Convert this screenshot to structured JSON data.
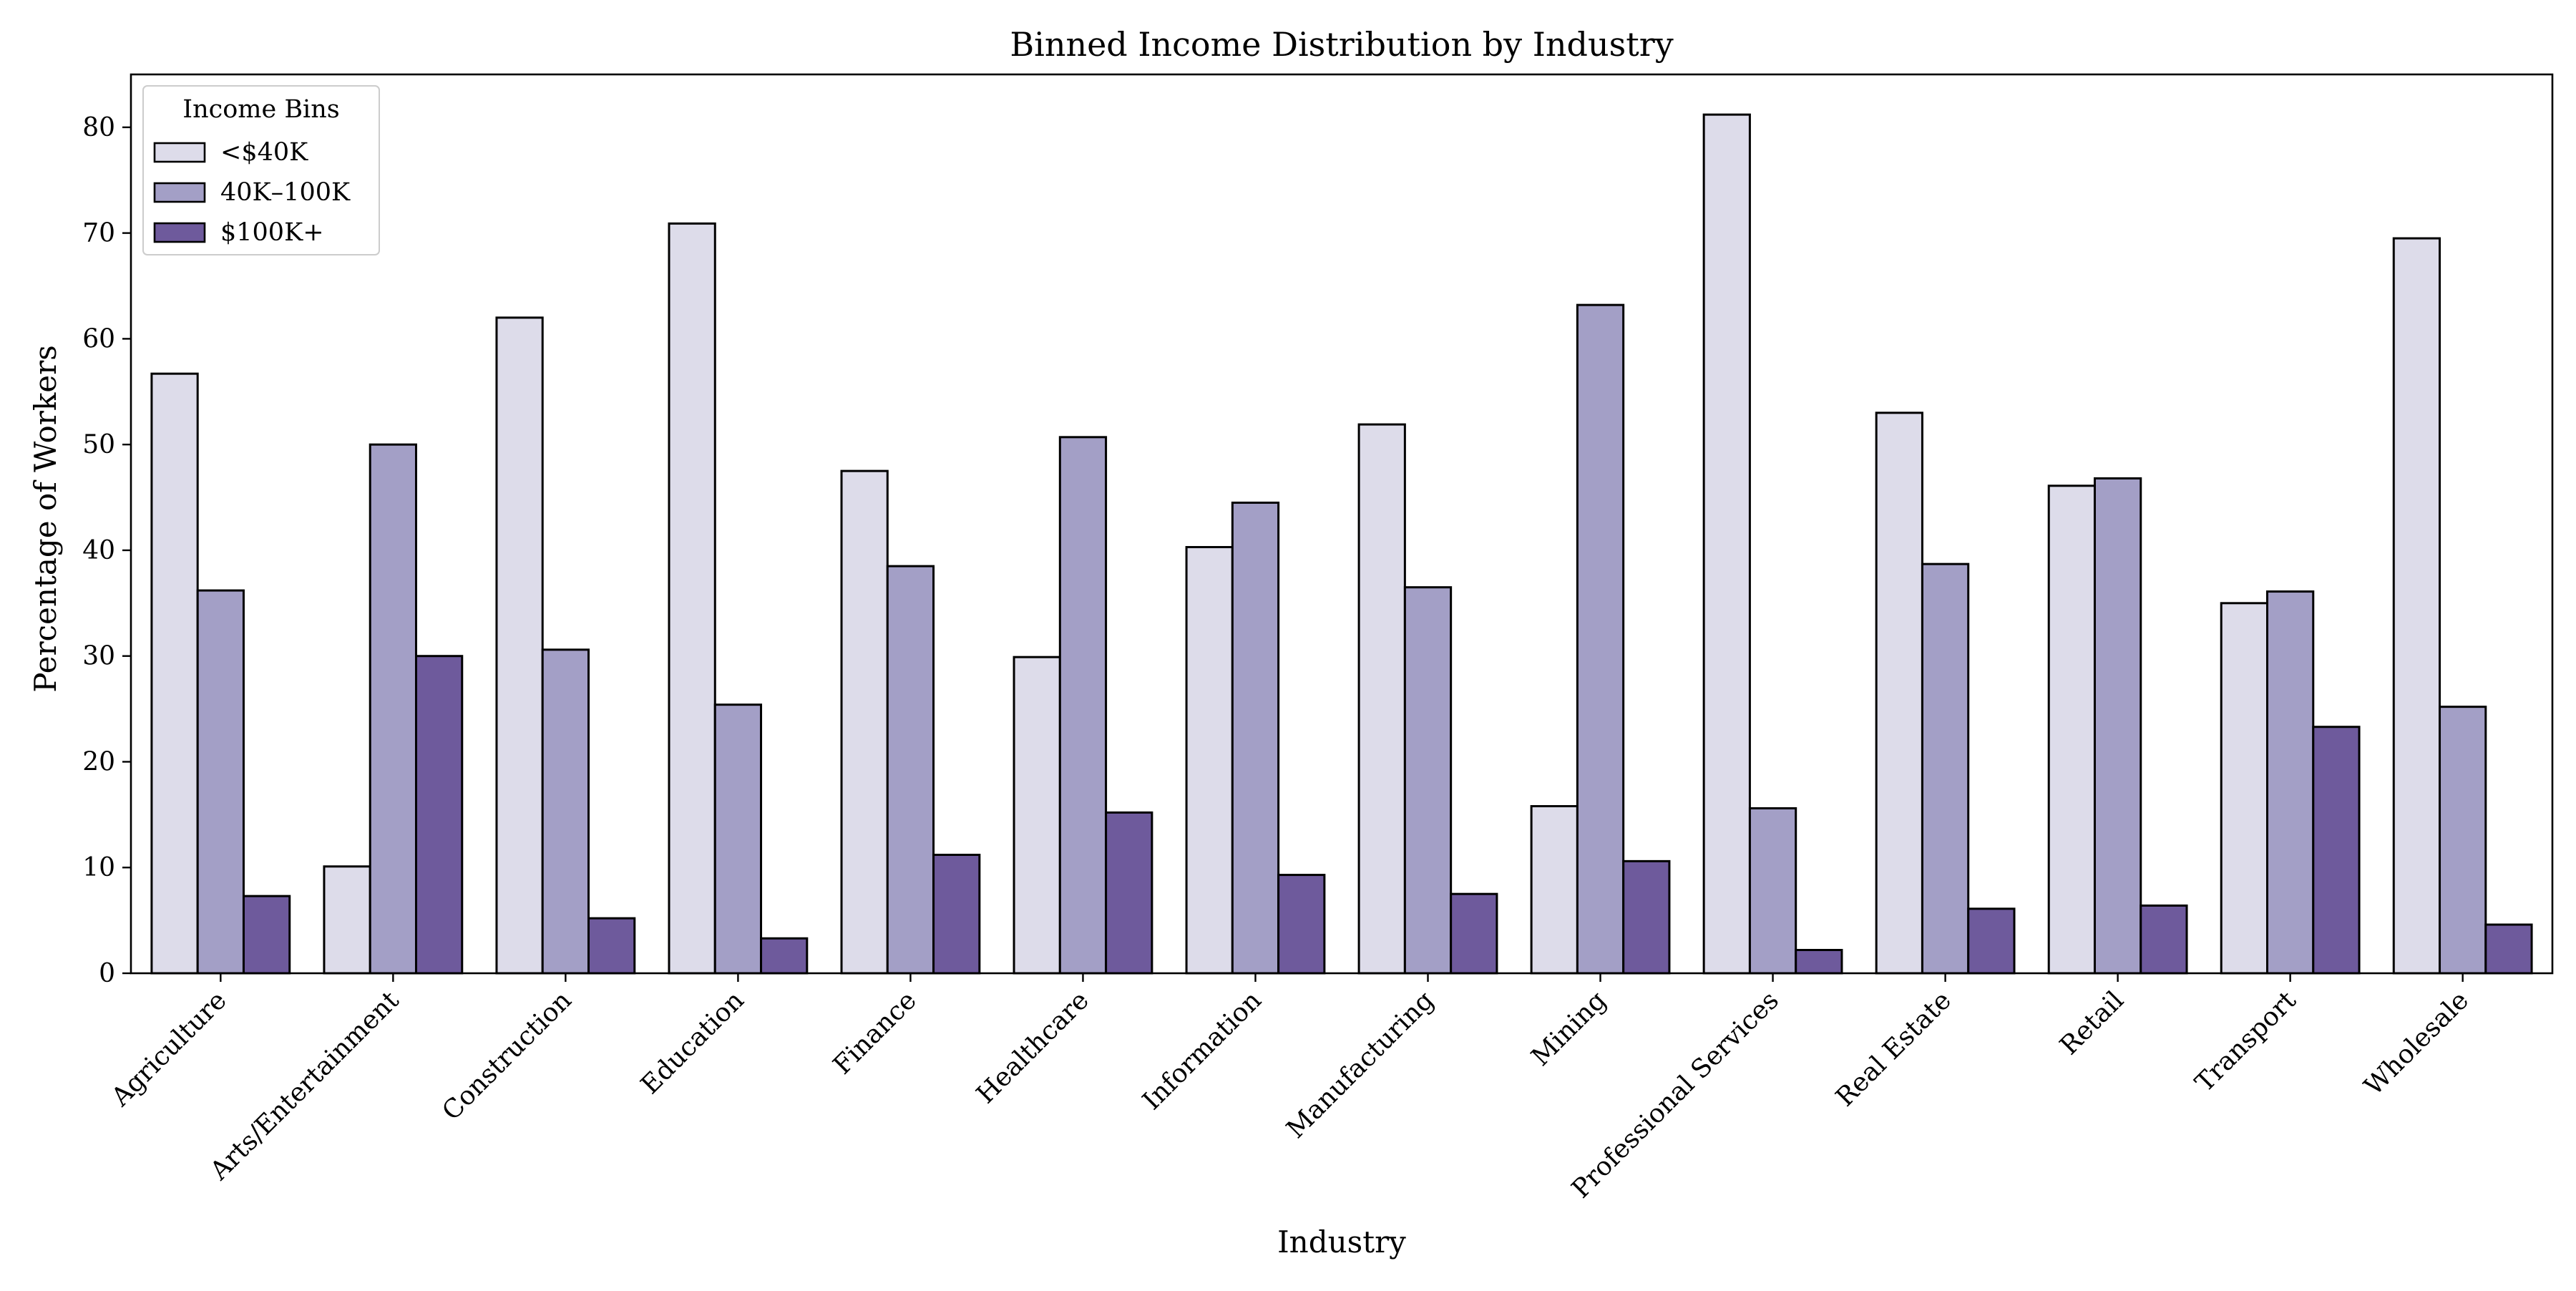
{
  "chart_data": {
    "type": "bar",
    "title": "Binned Income Distribution by Industry",
    "xlabel": "Industry",
    "ylabel": "Percentage of Workers",
    "ylim": [
      0,
      85
    ],
    "yticks": [
      0,
      10,
      20,
      30,
      40,
      50,
      60,
      70,
      80
    ],
    "grid": false,
    "legend": {
      "title": "Income Bins",
      "placement": "top-left"
    },
    "categories": [
      "Agriculture",
      "Arts/Entertainment",
      "Construction",
      "Education",
      "Finance",
      "Healthcare",
      "Information",
      "Manufacturing",
      "Mining",
      "Professional Services",
      "Real Estate",
      "Retail",
      "Transport",
      "Wholesale"
    ],
    "series": [
      {
        "name": "<$40K",
        "color": "#dddcea",
        "values": [
          56.7,
          10.1,
          62.0,
          70.9,
          47.5,
          29.9,
          40.3,
          51.9,
          15.8,
          81.2,
          53.0,
          46.1,
          35.0,
          69.5
        ]
      },
      {
        "name": "40K–100K",
        "color": "#a39fc6",
        "values": [
          36.2,
          50.0,
          30.6,
          25.4,
          38.5,
          50.7,
          44.5,
          36.5,
          63.2,
          15.6,
          38.7,
          46.8,
          36.1,
          25.2
        ]
      },
      {
        "name": "$100K+",
        "color": "#6e5a9c",
        "values": [
          7.3,
          30.0,
          5.2,
          3.3,
          11.2,
          15.2,
          9.3,
          7.5,
          10.6,
          2.2,
          6.1,
          6.4,
          23.3,
          4.6
        ]
      }
    ]
  }
}
